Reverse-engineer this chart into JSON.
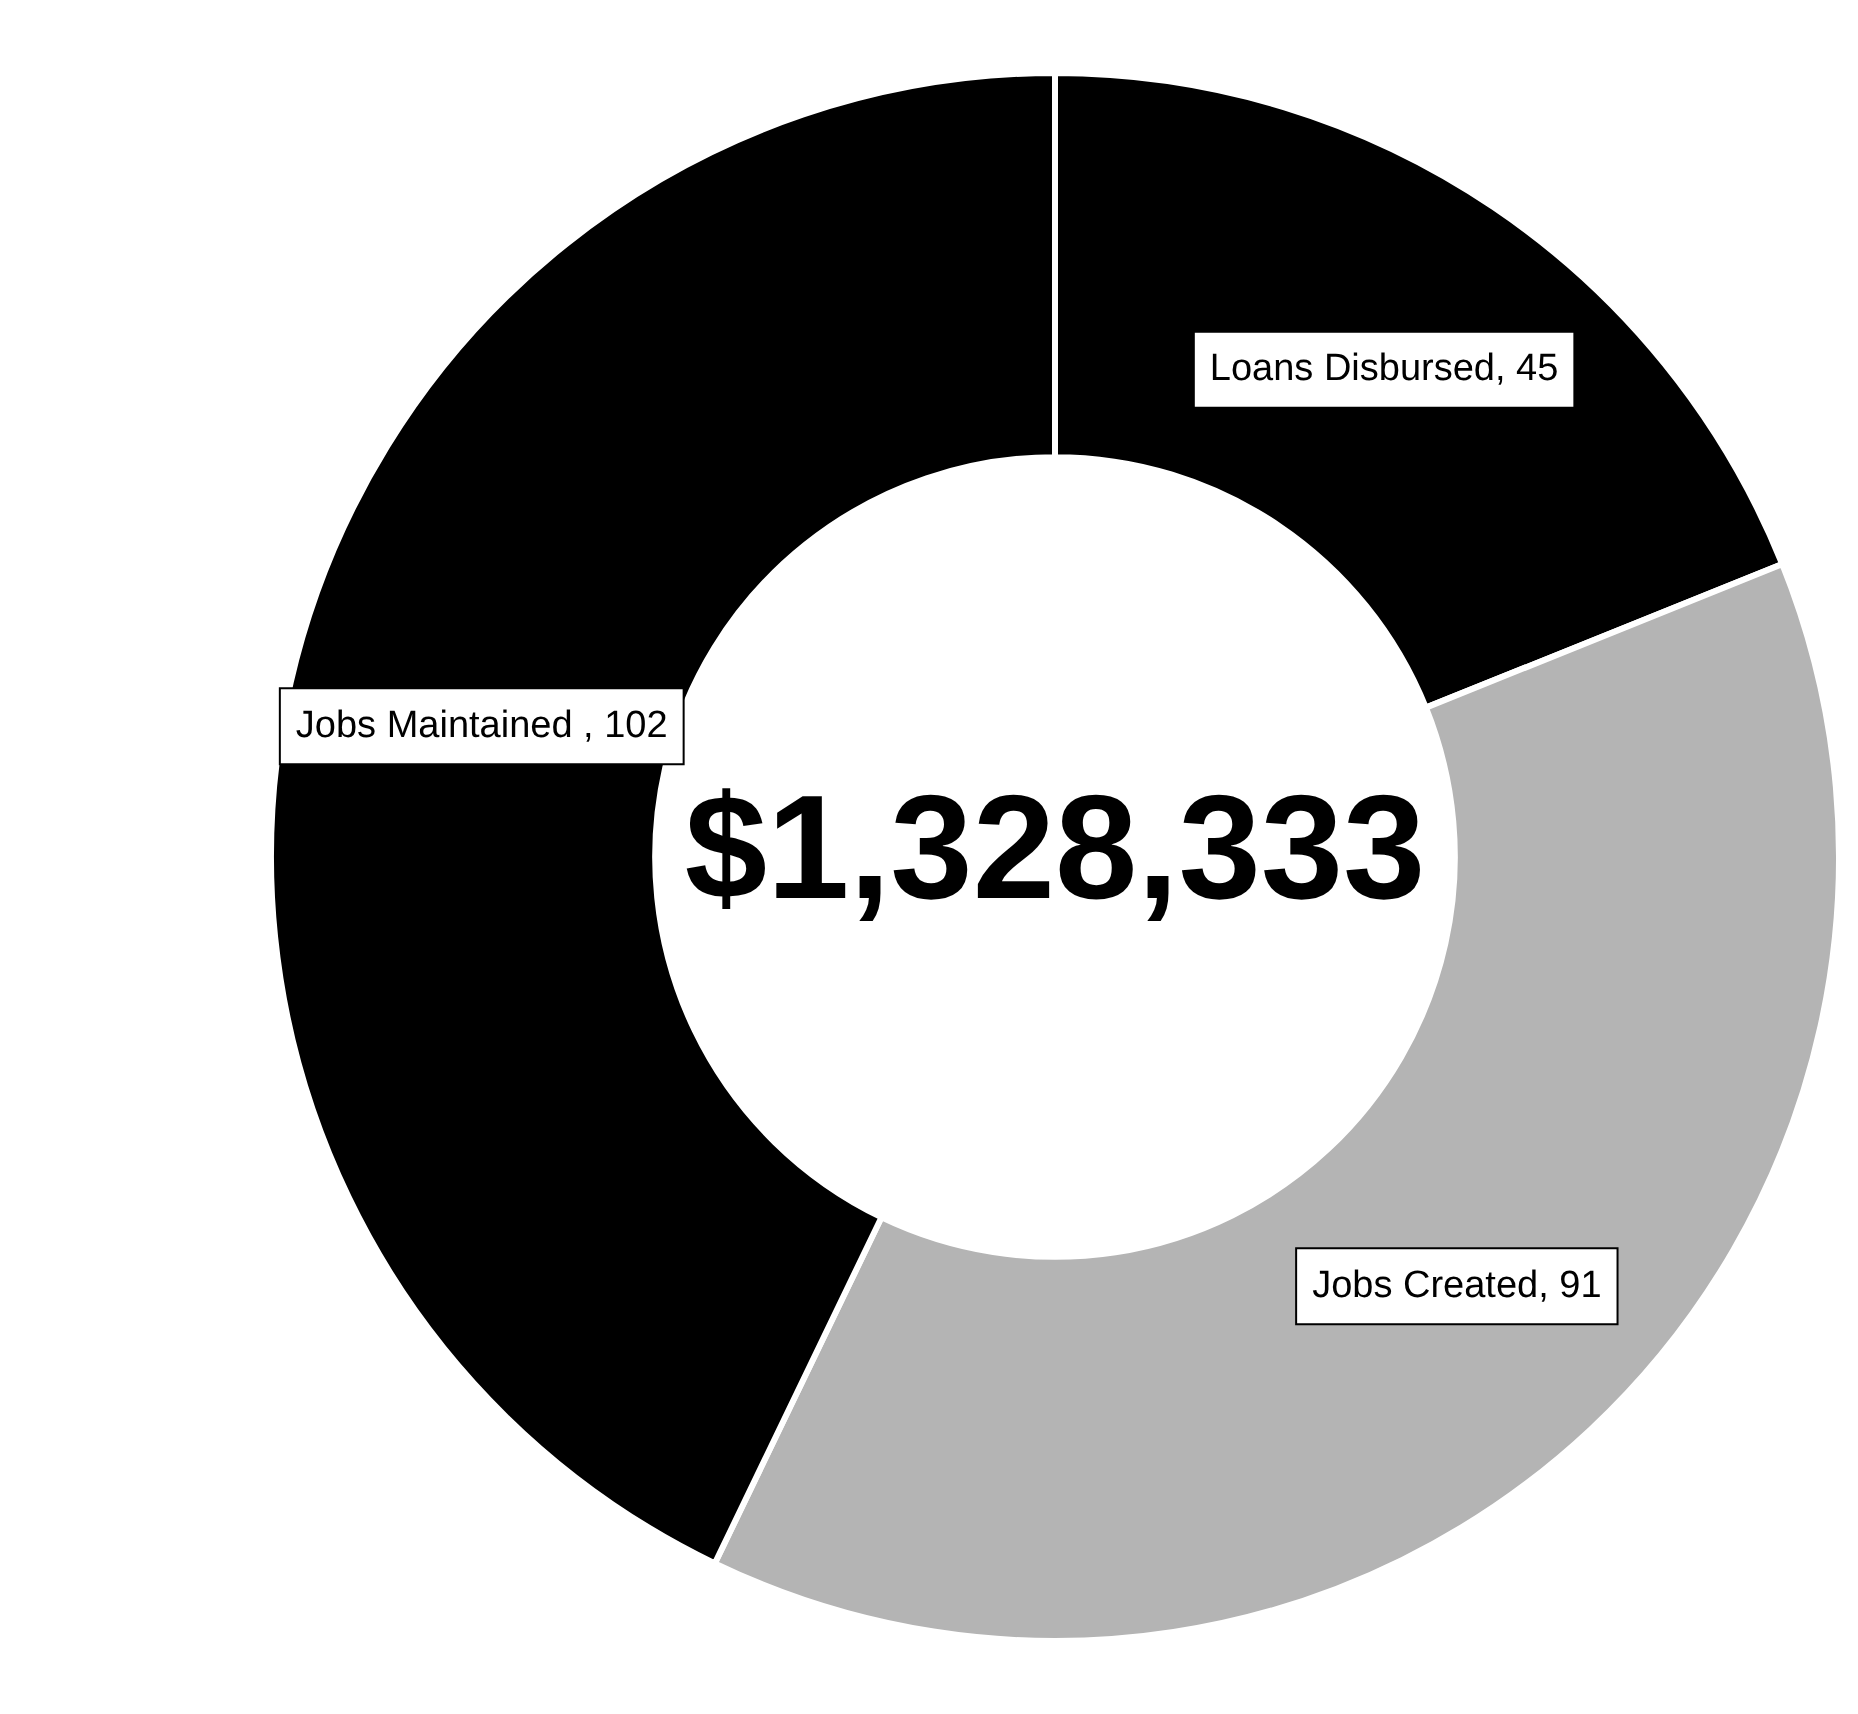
{
  "chart_data": {
    "type": "donut",
    "categories": [
      "Loans Disbursed, 45",
      "Jobs Created, 91",
      "Jobs Maintained , 102"
    ],
    "values": [
      45,
      91,
      102
    ],
    "colors": [
      "#000000",
      "#b4b4b4",
      "#000000"
    ],
    "annotations": [
      "$1,328,333"
    ],
    "legend": false
  }
}
